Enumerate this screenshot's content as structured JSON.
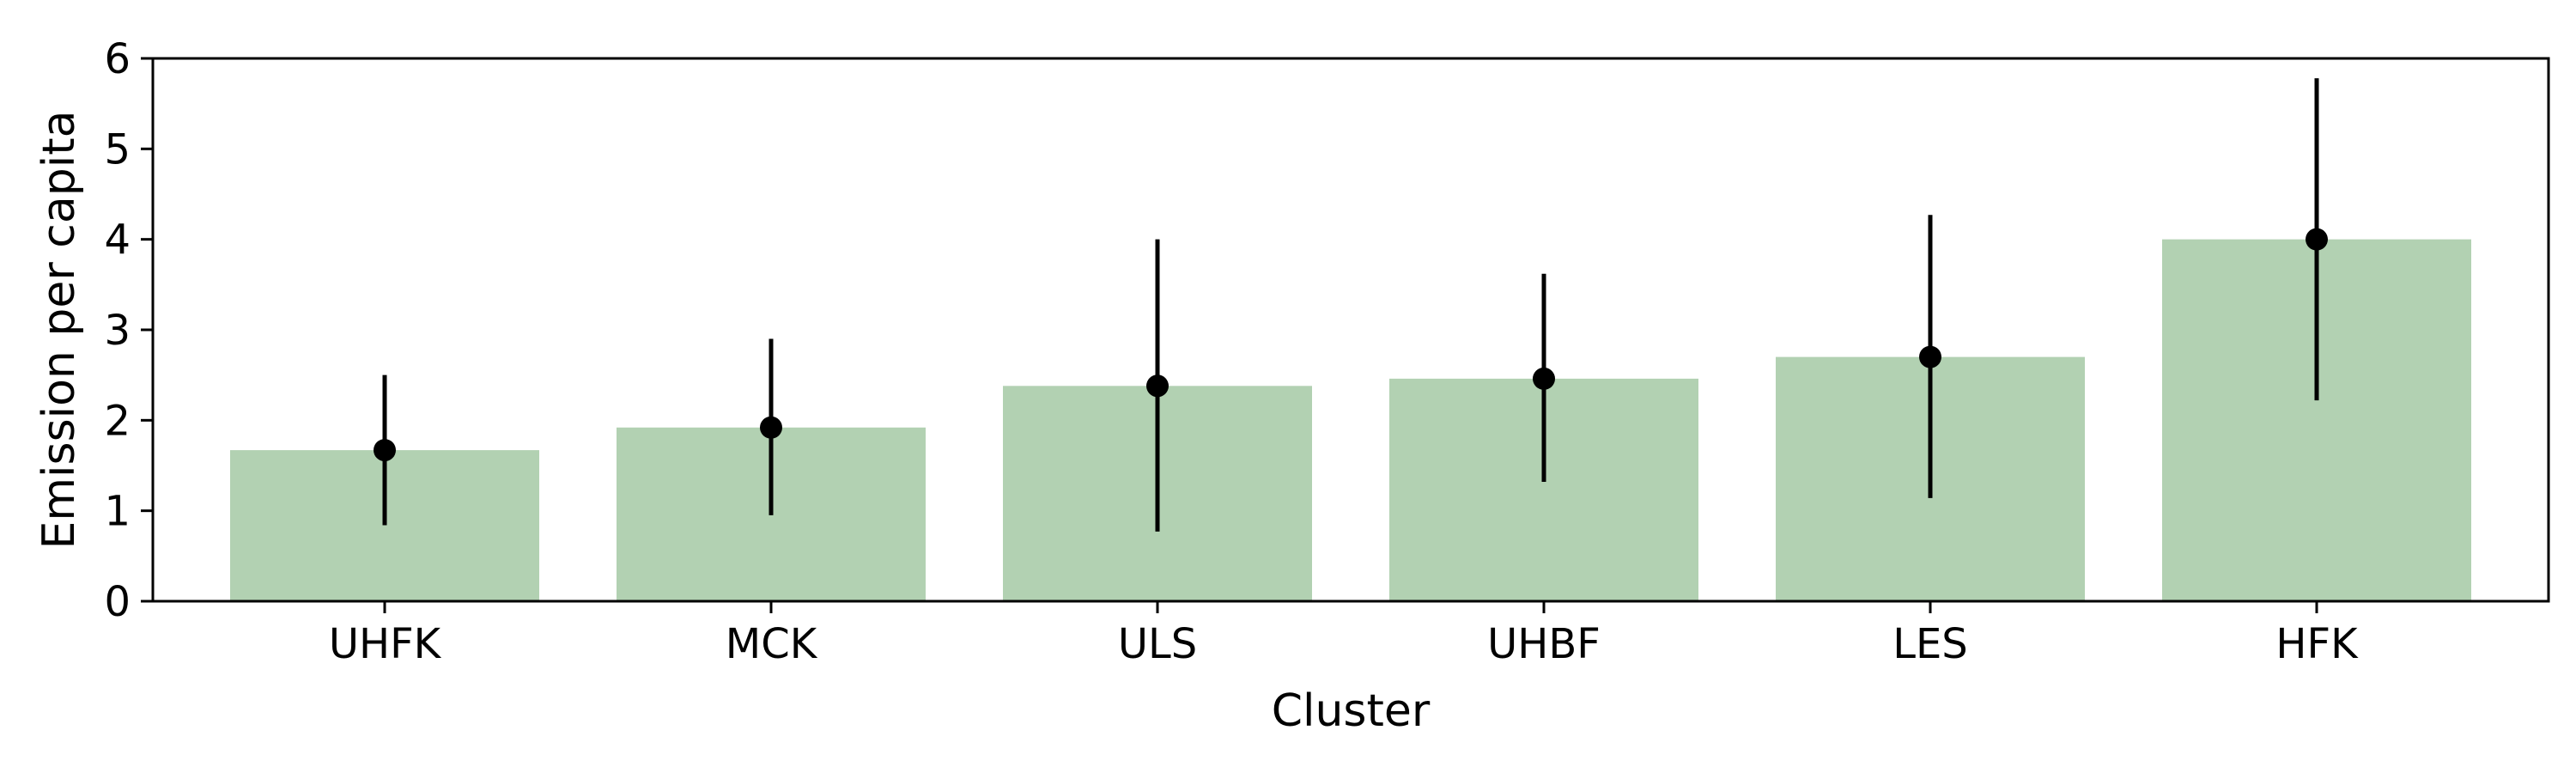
{
  "chart_data": {
    "type": "bar",
    "xlabel": "Cluster",
    "ylabel": "Emission per capita",
    "categories": [
      "UHFK",
      "MCK",
      "ULS",
      "UHBF",
      "LES",
      "HFK"
    ],
    "values": [
      1.67,
      1.92,
      2.38,
      2.46,
      2.7,
      4.0
    ],
    "error_low": [
      0.84,
      0.95,
      0.77,
      1.32,
      1.14,
      2.22
    ],
    "error_high": [
      2.5,
      2.9,
      4.0,
      3.62,
      4.27,
      5.78
    ],
    "ylim": [
      0,
      6
    ],
    "yticks": [
      0,
      1,
      2,
      3,
      4,
      5,
      6
    ],
    "grid": false,
    "bar_color": "#b2d1b2",
    "marker_color": "#000000"
  }
}
